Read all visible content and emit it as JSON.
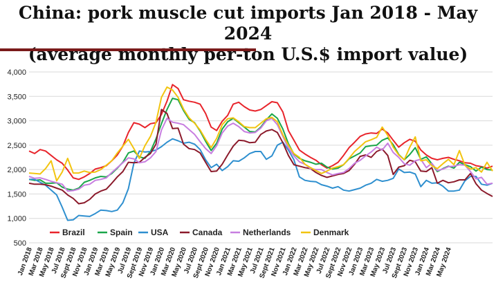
{
  "colors": {
    "rule": "#7a1a1a",
    "grid": "#d9d9d9"
  },
  "chart_data": {
    "type": "line",
    "title": "China: pork muscle cut imports Jan 2018 - May 2024",
    "subtitle": "(average monthly per-ton U.S.$ import value)",
    "ylim": [
      500,
      4000
    ],
    "yticks": [
      "500",
      "1,000",
      "1,500",
      "2,000",
      "2,500",
      "3,000",
      "3,500",
      "4,000"
    ],
    "grid": true,
    "legend_position": "bottom-left",
    "xtick_labels": [
      "Jan 2018",
      "Mar 2018",
      "May 2018",
      "Jul 2018",
      "Sept 2018",
      "Nov 2018",
      "Jan 2019",
      "Mar 2019",
      "May 2019",
      "Jul 2019",
      "Sept 2019",
      "Nov 2019",
      "Jan 2020",
      "Mar 2020",
      "May 2020",
      "Jul 2020",
      "Sept 2020",
      "Nov 2020",
      "Jan 2021",
      "Mar 2021",
      "May 2021",
      "Jul 2021",
      "Sept 2021",
      "Nov 2021",
      "Jan 2022",
      "Mar 2022",
      "May 2022",
      "Jul 2022",
      "Sept 2022",
      "Nov 2022",
      "Jan 2023",
      "Mar 2023",
      "May 2023",
      "Jul 2023",
      "Sept 2023",
      "Nov 2023",
      "Jan 2024",
      "Mar 2024",
      "May 2024"
    ],
    "series": [
      {
        "name": "Brazil",
        "color": "#e8242b",
        "values": [
          2380,
          2330,
          2410,
          2380,
          2290,
          2200,
          2130,
          1990,
          1830,
          1800,
          1850,
          1920,
          2010,
          2040,
          2080,
          2180,
          2300,
          2480,
          2760,
          2960,
          2930,
          2860,
          2940,
          2960,
          3130,
          3400,
          3740,
          3660,
          3430,
          3400,
          3380,
          3340,
          3150,
          2870,
          2800,
          2990,
          3110,
          3340,
          3380,
          3290,
          3220,
          3200,
          3230,
          3310,
          3390,
          3370,
          3180,
          2800,
          2600,
          2400,
          2320,
          2250,
          2190,
          2100,
          2030,
          2080,
          2150,
          2290,
          2450,
          2560,
          2680,
          2730,
          2750,
          2740,
          2830,
          2750,
          2600,
          2460,
          2550,
          2620,
          2580,
          2400,
          2300,
          2230,
          2200,
          2230,
          2250,
          2210,
          2180,
          2140,
          2130,
          2080,
          2060,
          2030,
          2070
        ]
      },
      {
        "name": "Spain",
        "color": "#1aa64a",
        "values": [
          1800,
          1780,
          1790,
          1720,
          1720,
          1730,
          1640,
          1600,
          1580,
          1620,
          1740,
          1780,
          1830,
          1860,
          1850,
          1920,
          2030,
          2150,
          2340,
          2380,
          2260,
          2230,
          2370,
          2630,
          2940,
          3230,
          3460,
          3430,
          3210,
          3030,
          2960,
          2790,
          2580,
          2390,
          2540,
          2830,
          2980,
          3050,
          2960,
          2870,
          2780,
          2770,
          2870,
          3020,
          3140,
          3050,
          2830,
          2530,
          2320,
          2230,
          2180,
          2150,
          2110,
          2130,
          2050,
          2010,
          2030,
          2100,
          2220,
          2280,
          2340,
          2470,
          2490,
          2500,
          2600,
          2650,
          2510,
          2310,
          2200,
          2310,
          2450,
          2210,
          2260,
          2120,
          1960,
          2020,
          2070,
          2030,
          2150,
          2100,
          2060,
          1970,
          2050,
          2000,
          1990
        ]
      },
      {
        "name": "USA",
        "color": "#2e8fcf",
        "values": [
          1800,
          1800,
          1740,
          1680,
          1580,
          1480,
          1230,
          960,
          970,
          1060,
          1050,
          1040,
          1100,
          1170,
          1160,
          1140,
          1170,
          1320,
          1610,
          2130,
          2380,
          2360,
          2370,
          2400,
          2470,
          2560,
          2630,
          2590,
          2540,
          2560,
          2520,
          2410,
          2200,
          2040,
          2110,
          1980,
          2060,
          2180,
          2170,
          2240,
          2330,
          2370,
          2370,
          2210,
          2280,
          2500,
          2560,
          2400,
          2200,
          1850,
          1780,
          1760,
          1750,
          1690,
          1660,
          1620,
          1650,
          1580,
          1560,
          1590,
          1620,
          1680,
          1720,
          1800,
          1760,
          1780,
          1820,
          2010,
          1940,
          1950,
          1910,
          1650,
          1780,
          1720,
          1730,
          1660,
          1560,
          1560,
          1580,
          1770,
          1860,
          1860,
          1700,
          1680,
          1720
        ]
      },
      {
        "name": "Canada",
        "color": "#8b1a2b",
        "values": [
          1720,
          1700,
          1700,
          1690,
          1660,
          1620,
          1580,
          1480,
          1410,
          1300,
          1320,
          1390,
          1500,
          1560,
          1600,
          1720,
          1850,
          1960,
          2150,
          2140,
          2150,
          2250,
          2330,
          2520,
          3230,
          3150,
          2840,
          2850,
          2520,
          2430,
          2410,
          2340,
          2150,
          1960,
          1970,
          2110,
          2300,
          2480,
          2600,
          2590,
          2550,
          2560,
          2720,
          2790,
          2820,
          2760,
          2550,
          2290,
          2100,
          2070,
          2040,
          2020,
          1940,
          1880,
          1840,
          1870,
          1900,
          1920,
          1980,
          2110,
          2270,
          2300,
          2250,
          2370,
          2420,
          2290,
          1900,
          2050,
          2080,
          2190,
          2160,
          1970,
          1960,
          2040,
          1720,
          1780,
          1730,
          1750,
          1790,
          1790,
          1920,
          1710,
          1580,
          1510,
          1450
        ]
      },
      {
        "name": "Netherlands",
        "color": "#c77ee0",
        "values": [
          1860,
          1820,
          1830,
          1800,
          1760,
          1730,
          1700,
          1560,
          1570,
          1600,
          1680,
          1700,
          1780,
          1800,
          1830,
          1940,
          2040,
          2140,
          2240,
          2220,
          2140,
          2160,
          2240,
          2370,
          2810,
          3050,
          2970,
          2950,
          2920,
          2820,
          2720,
          2570,
          2430,
          2330,
          2490,
          2750,
          2890,
          2950,
          2880,
          2780,
          2750,
          2760,
          2850,
          3000,
          3050,
          2920,
          2680,
          2440,
          2280,
          2160,
          2110,
          2020,
          2000,
          2000,
          1940,
          1890,
          1920,
          1940,
          2020,
          2130,
          2190,
          2280,
          2360,
          2460,
          2400,
          2540,
          2350,
          2250,
          2120,
          2090,
          2180,
          2210,
          2040,
          2130,
          1980,
          2010,
          2060,
          2070,
          2100,
          2090,
          1960,
          1810,
          1840,
          1700,
          1720
        ]
      },
      {
        "name": "Denmark",
        "color": "#f2c40f",
        "values": [
          1930,
          1920,
          1910,
          2020,
          2180,
          1770,
          1950,
          2230,
          1930,
          1930,
          1970,
          1940,
          1950,
          2000,
          2090,
          2180,
          2340,
          2480,
          2620,
          2430,
          2230,
          2490,
          2680,
          2970,
          3480,
          3690,
          3630,
          3480,
          3240,
          3060,
          2950,
          2810,
          2620,
          2450,
          2640,
          2920,
          3040,
          3060,
          2980,
          2880,
          2860,
          2860,
          2950,
          3040,
          3070,
          2980,
          2710,
          2500,
          2330,
          2250,
          2110,
          2040,
          1980,
          1920,
          1970,
          2030,
          2060,
          2100,
          2230,
          2370,
          2470,
          2570,
          2610,
          2660,
          2870,
          2700,
          2460,
          2300,
          2200,
          2460,
          2670,
          2180,
          2200,
          2080,
          2020,
          2120,
          2210,
          2100,
          2390,
          2090,
          2010,
          2040,
          1950,
          2150,
          1970
        ]
      }
    ]
  }
}
